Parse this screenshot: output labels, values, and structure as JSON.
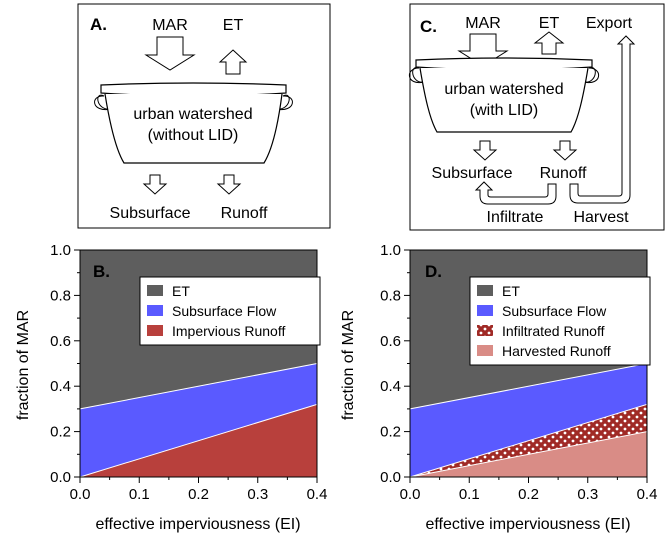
{
  "panel_a": {
    "letter": "A.",
    "inputs": {
      "mar": "MAR",
      "et": "ET"
    },
    "pot_label_line1": "urban watershed",
    "pot_label_line2": "(without LID)",
    "outputs": {
      "subsurface": "Subsurface",
      "runoff": "Runoff"
    },
    "icons": [
      "arrow-down-icon",
      "arrow-up-icon",
      "pot-icon"
    ]
  },
  "panel_c": {
    "letter": "C.",
    "inputs": {
      "mar": "MAR",
      "et": "ET",
      "export": "Export"
    },
    "pot_label_line1": "urban watershed",
    "pot_label_line2": "(with LID)",
    "outputs": {
      "subsurface": "Subsurface",
      "runoff": "Runoff"
    },
    "pathways": {
      "infiltrate": "Infiltrate",
      "harvest": "Harvest"
    }
  },
  "colors": {
    "et": "#5e5e5e",
    "subsurface": "#5a5aff",
    "impervious_runoff": "#b8403c",
    "infiltrated_runoff": "#a02a26",
    "harvested_runoff": "#d98c86"
  },
  "chart_data": [
    {
      "panel": "B.",
      "type": "area",
      "stacked": true,
      "xlabel": "effective imperviousness (EI)",
      "ylabel": "fraction of MAR",
      "xlim": [
        0,
        0.4
      ],
      "ylim": [
        0,
        1.0
      ],
      "xticks": [
        "0.0",
        "0.1",
        "0.2",
        "0.3",
        "0.4"
      ],
      "yticks": [
        "0.0",
        "0.2",
        "0.4",
        "0.6",
        "0.8",
        "1.0"
      ],
      "x": [
        0.0,
        0.4
      ],
      "series": [
        {
          "name": "Impervious Runoff",
          "values": [
            0.0,
            0.32
          ]
        },
        {
          "name": "Subsurface Flow",
          "values": [
            0.3,
            0.18
          ]
        },
        {
          "name": "ET",
          "values": [
            0.7,
            0.5
          ]
        }
      ],
      "legend": [
        "ET",
        "Subsurface Flow",
        "Impervious Runoff"
      ],
      "legend_placement": "top-center"
    },
    {
      "panel": "D.",
      "type": "area",
      "stacked": true,
      "xlabel": "effective imperviousness (EI)",
      "ylabel": "fraction of MAR",
      "xlim": [
        0,
        0.4
      ],
      "ylim": [
        0,
        1.0
      ],
      "xticks": [
        "0.0",
        "0.1",
        "0.2",
        "0.3",
        "0.4"
      ],
      "yticks": [
        "0.0",
        "0.2",
        "0.4",
        "0.6",
        "0.8",
        "1.0"
      ],
      "x": [
        0.0,
        0.4
      ],
      "series": [
        {
          "name": "Harvested Runoff",
          "values": [
            0.0,
            0.2
          ]
        },
        {
          "name": "Infiltrated Runoff",
          "values": [
            0.0,
            0.12
          ]
        },
        {
          "name": "Subsurface Flow",
          "values": [
            0.3,
            0.18
          ]
        },
        {
          "name": "ET",
          "values": [
            0.7,
            0.5
          ]
        }
      ],
      "legend": [
        "ET",
        "Subsurface Flow",
        "Infiltrated Runoff",
        "Harvested Runoff"
      ],
      "legend_placement": "top-center"
    }
  ]
}
